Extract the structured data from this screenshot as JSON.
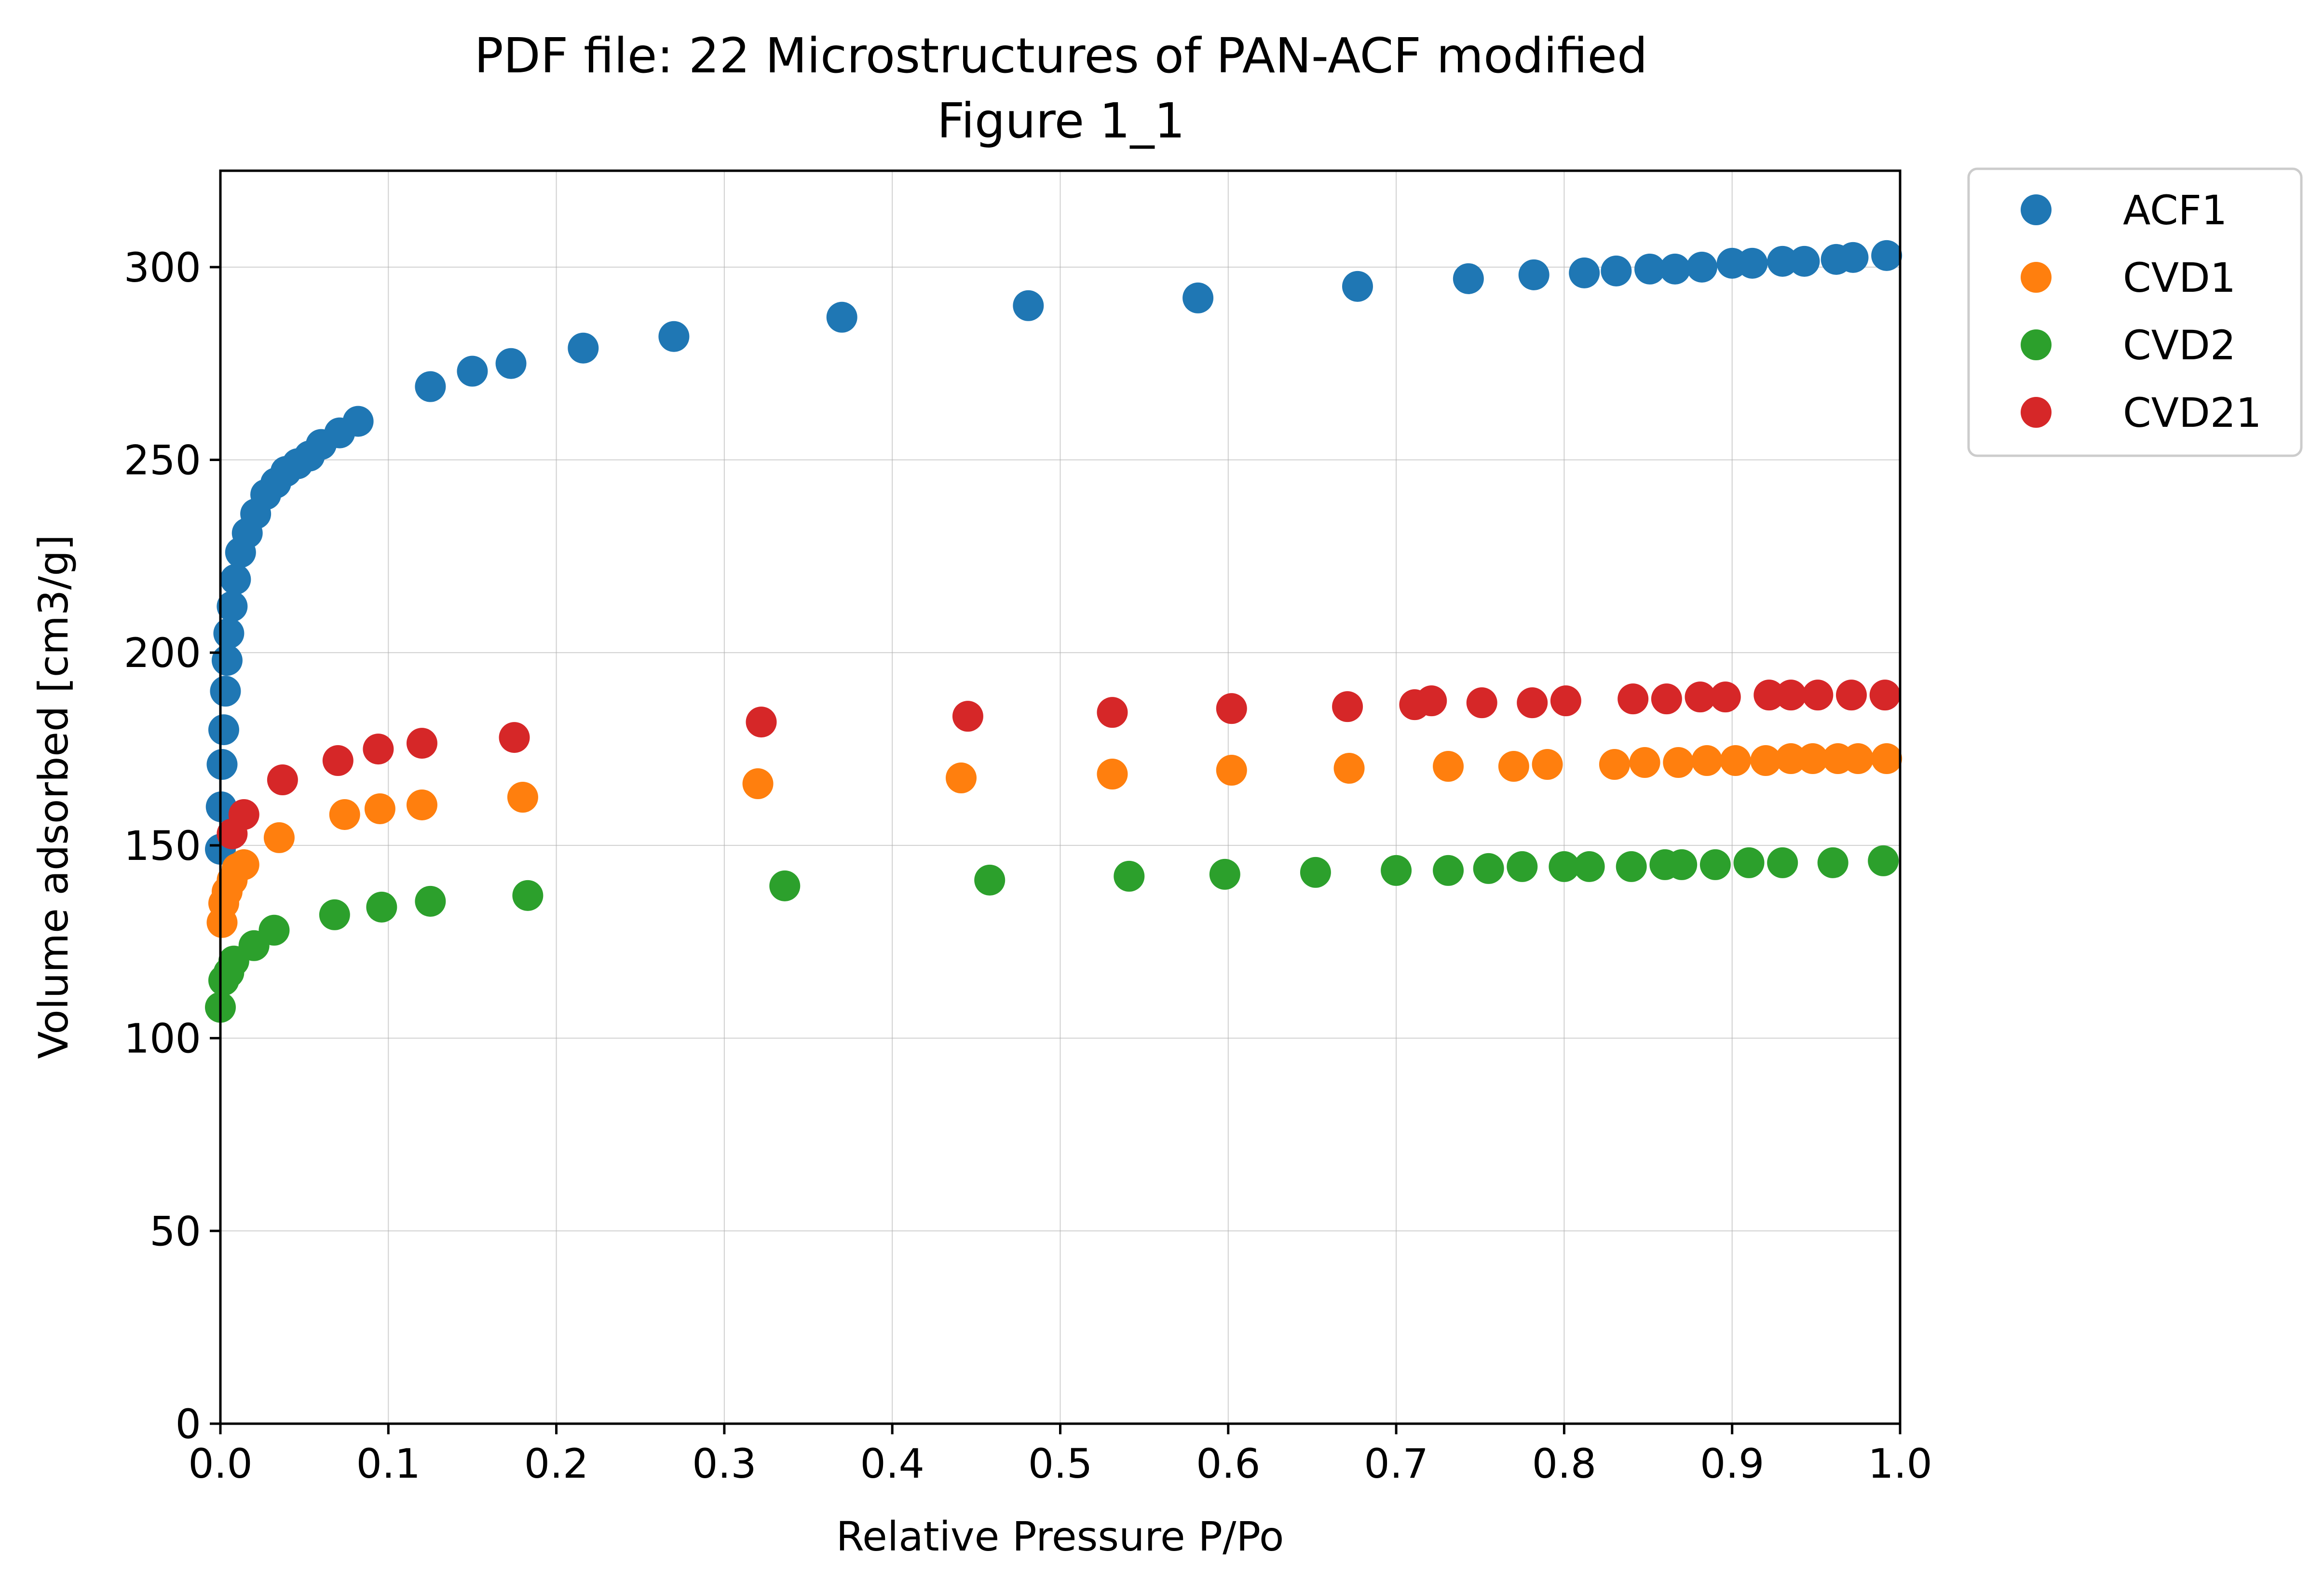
{
  "chart_data": {
    "type": "scatter",
    "title": "PDF file: 22 Microstructures of PAN-ACF modified",
    "subtitle": "Figure 1_1",
    "xlabel": "Relative Pressure P/Po",
    "ylabel": "Volume adsorbed [cm3/g]",
    "xlim": [
      0.0,
      1.0
    ],
    "ylim": [
      0,
      325
    ],
    "xticks": [
      0.0,
      0.1,
      0.2,
      0.3,
      0.4,
      0.5,
      0.6,
      0.7,
      0.8,
      0.9,
      1.0
    ],
    "xtick_labels": [
      "0.0",
      "0.1",
      "0.2",
      "0.3",
      "0.4",
      "0.5",
      "0.6",
      "0.7",
      "0.8",
      "0.9",
      "1.0"
    ],
    "yticks": [
      0,
      50,
      100,
      150,
      200,
      250,
      300
    ],
    "ytick_labels": [
      "0",
      "50",
      "100",
      "150",
      "200",
      "250",
      "300"
    ],
    "grid": true,
    "legend_position": "outside-top-right",
    "series": [
      {
        "name": "ACF1",
        "color": "#1f77b4",
        "x": [
          0.0,
          0.0005,
          0.001,
          0.002,
          0.003,
          0.004,
          0.005,
          0.007,
          0.009,
          0.012,
          0.016,
          0.021,
          0.027,
          0.033,
          0.039,
          0.046,
          0.053,
          0.06,
          0.071,
          0.082,
          0.125,
          0.15,
          0.173,
          0.216,
          0.27,
          0.37,
          0.481,
          0.582,
          0.677,
          0.743,
          0.782,
          0.812,
          0.831,
          0.851,
          0.866,
          0.882,
          0.9,
          0.912,
          0.93,
          0.943,
          0.962,
          0.972,
          0.992
        ],
        "y": [
          149,
          160,
          171,
          180,
          190,
          198,
          205,
          212,
          219,
          226,
          231,
          236,
          241,
          244,
          247,
          249,
          251,
          254,
          257,
          260,
          269,
          273,
          275,
          279,
          282,
          287,
          290,
          292,
          295,
          297,
          298,
          298.5,
          299,
          299.5,
          299.5,
          300,
          301,
          301,
          301.5,
          301.5,
          302,
          302.5,
          303
        ]
      },
      {
        "name": "CVD1",
        "color": "#ff7f0e",
        "x": [
          0.001,
          0.002,
          0.004,
          0.007,
          0.01,
          0.014,
          0.035,
          0.074,
          0.095,
          0.12,
          0.18,
          0.32,
          0.441,
          0.531,
          0.602,
          0.672,
          0.731,
          0.77,
          0.79,
          0.83,
          0.848,
          0.868,
          0.885,
          0.902,
          0.92,
          0.935,
          0.948,
          0.963,
          0.975,
          0.992
        ],
        "y": [
          130,
          135,
          138,
          141,
          144,
          145,
          152,
          158,
          159.5,
          160.5,
          162.5,
          166,
          167.5,
          168.5,
          169.5,
          170,
          170.5,
          170.5,
          171,
          171,
          171.5,
          171.5,
          172,
          172,
          172,
          172.5,
          172.5,
          172.5,
          172.5,
          172.5
        ]
      },
      {
        "name": "CVD2",
        "color": "#2ca02c",
        "x": [
          0.0,
          0.002,
          0.005,
          0.008,
          0.02,
          0.032,
          0.068,
          0.096,
          0.125,
          0.183,
          0.336,
          0.458,
          0.541,
          0.598,
          0.652,
          0.7,
          0.731,
          0.755,
          0.775,
          0.8,
          0.815,
          0.84,
          0.86,
          0.87,
          0.89,
          0.91,
          0.93,
          0.96,
          0.99
        ],
        "y": [
          108,
          115,
          117,
          120,
          124,
          128,
          132,
          134,
          135.5,
          137,
          139.5,
          141,
          142,
          142.5,
          143,
          143.5,
          143.5,
          144,
          144.5,
          144.5,
          144.5,
          144.5,
          145,
          145,
          145,
          145.5,
          145.5,
          145.5,
          146
        ]
      },
      {
        "name": "CVD21",
        "color": "#d62728",
        "x": [
          0.007,
          0.014,
          0.037,
          0.07,
          0.094,
          0.12,
          0.175,
          0.322,
          0.445,
          0.531,
          0.602,
          0.671,
          0.711,
          0.721,
          0.751,
          0.781,
          0.801,
          0.841,
          0.861,
          0.881,
          0.896,
          0.922,
          0.935,
          0.951,
          0.971,
          0.991
        ],
        "y": [
          153,
          158,
          167,
          172,
          175,
          176.5,
          178,
          182,
          183.5,
          184.5,
          185.5,
          186,
          186.5,
          187.5,
          187,
          187,
          187.5,
          188,
          188,
          188.5,
          188.5,
          189,
          189,
          189,
          189,
          189
        ]
      }
    ]
  }
}
